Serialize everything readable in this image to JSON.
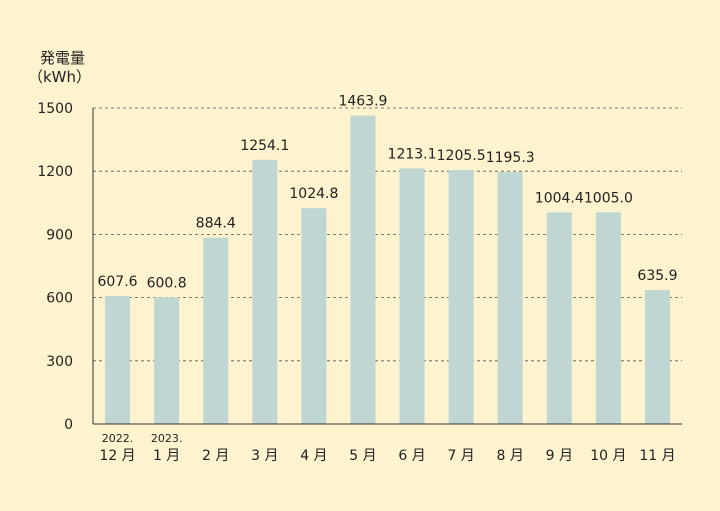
{
  "chart_data": {
    "type": "bar",
    "ylabel": "発電量",
    "yunit": "（kWh）",
    "ylim": [
      0,
      1500
    ],
    "yticks": [
      "0",
      "300",
      "600",
      "900",
      "1200",
      "1500"
    ],
    "gridlines": "dashed",
    "bar_color": "#bfd6d2",
    "categories": [
      {
        "year": "2022.",
        "month": "12 月"
      },
      {
        "year": "2023.",
        "month": "1 月"
      },
      {
        "year": "",
        "month": "2 月"
      },
      {
        "year": "",
        "month": "3 月"
      },
      {
        "year": "",
        "month": "4 月"
      },
      {
        "year": "",
        "month": "5 月"
      },
      {
        "year": "",
        "month": "6 月"
      },
      {
        "year": "",
        "month": "7 月"
      },
      {
        "year": "",
        "month": "8 月"
      },
      {
        "year": "",
        "month": "9 月"
      },
      {
        "year": "",
        "month": "10 月"
      },
      {
        "year": "",
        "month": "11 月"
      }
    ],
    "values": [
      607.6,
      600.8,
      884.4,
      1254.1,
      1024.8,
      1463.9,
      1213.1,
      1205.5,
      1195.3,
      1004.4,
      1005.0,
      635.9
    ],
    "value_labels": [
      "607.6",
      "600.8",
      "884.4",
      "1254.1",
      "1024.8",
      "1463.9",
      "1213.1",
      "1205.5",
      "1195.3",
      "1004.4",
      "1005.0",
      "635.9"
    ]
  }
}
